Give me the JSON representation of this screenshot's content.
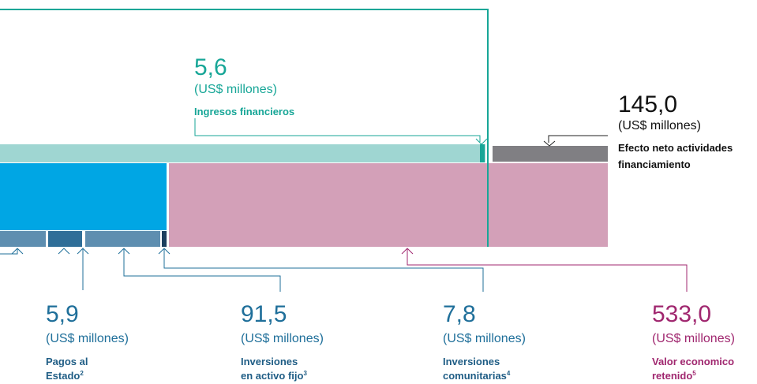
{
  "callouts": [
    {
      "value": "5,6",
      "unit": "(US$ millones)",
      "label": [
        "Ingresos financieros"
      ]
    },
    {
      "value": "145,0",
      "unit": "(US$ millones)",
      "label": [
        "Efecto neto actividades",
        "financiamiento"
      ]
    },
    {
      "value": "5,9",
      "unit": "(US$ millones)",
      "label": [
        "Pagos al",
        "Estado"
      ],
      "note": "2"
    },
    {
      "value": "91,5",
      "unit": "(US$ millones)",
      "label": [
        "Inversiones",
        "en activo fijo"
      ],
      "note": "3"
    },
    {
      "value": "7,8",
      "unit": "(US$ millones)",
      "label": [
        "Inversiones",
        "comunitarias"
      ],
      "note": "4"
    },
    {
      "value": "533,0",
      "unit": "(US$ millones)",
      "label": [
        "Valor economico",
        "retenido"
      ],
      "note": "5"
    }
  ]
}
